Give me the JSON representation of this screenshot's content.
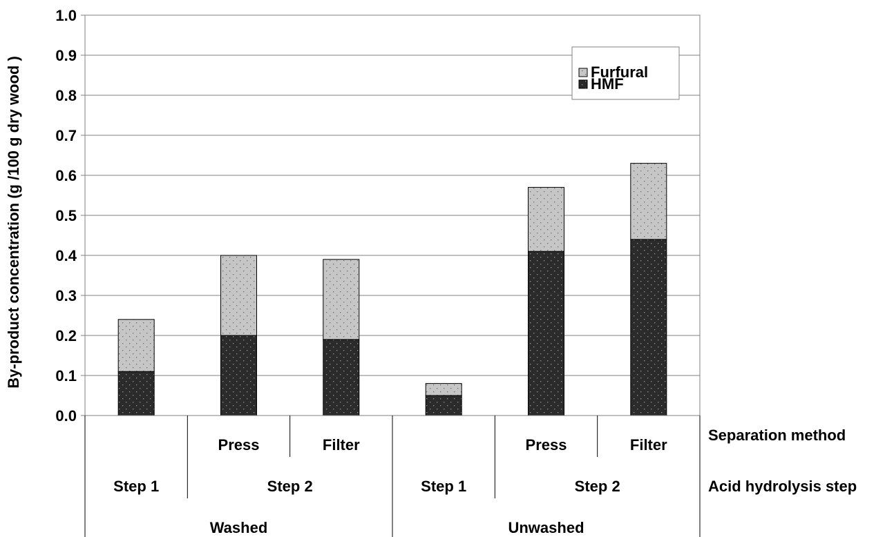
{
  "chart_data": {
    "type": "bar",
    "stacked": true,
    "ylabel": "By-product concentration (g /100 g dry  wood )",
    "ylim": [
      0,
      1.0
    ],
    "yticks": [
      "0.0",
      "0.1",
      "0.2",
      "0.3",
      "0.4",
      "0.5",
      "0.6",
      "0.7",
      "0.8",
      "0.9",
      "1.0"
    ],
    "grid": true,
    "legend_position": "top-right",
    "categories": [
      {
        "pretreatment": "Washed",
        "step": "Step 1",
        "separation": ""
      },
      {
        "pretreatment": "Washed",
        "step": "Step 2",
        "separation": "Press"
      },
      {
        "pretreatment": "Washed",
        "step": "Step 2",
        "separation": "Filter"
      },
      {
        "pretreatment": "Unwashed",
        "step": "Step 1",
        "separation": ""
      },
      {
        "pretreatment": "Unwashed",
        "step": "Step 2",
        "separation": "Press"
      },
      {
        "pretreatment": "Unwashed",
        "step": "Step 2",
        "separation": "Filter"
      }
    ],
    "series": [
      {
        "name": "HMF",
        "color": "#2b2b2b",
        "values": [
          0.11,
          0.2,
          0.19,
          0.05,
          0.41,
          0.44
        ]
      },
      {
        "name": "Furfural",
        "color": "#c4c4c4",
        "values": [
          0.13,
          0.2,
          0.2,
          0.03,
          0.16,
          0.19
        ]
      }
    ],
    "legend_order": [
      "Furfural",
      "HMF"
    ],
    "row_labels": {
      "separation": "Separation method",
      "step": "Acid hydrolysis step"
    },
    "group_labels": {
      "separation": [
        "",
        "Press",
        "Filter",
        "",
        "Press",
        "Filter"
      ],
      "step": [
        "Step 1",
        "Step 2",
        "Step 1",
        "Step 2"
      ],
      "pretreatment": [
        "Washed",
        "Unwashed"
      ]
    }
  }
}
